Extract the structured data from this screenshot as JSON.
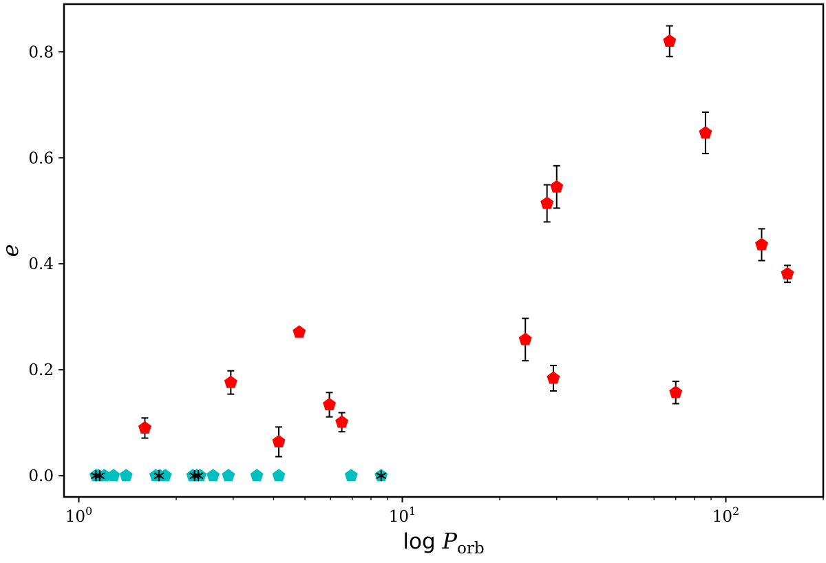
{
  "chart_data": {
    "type": "scatter",
    "title": "",
    "xlabel": {
      "prefix": "log ",
      "symbol": "P",
      "subscript": "orb"
    },
    "ylabel": "e",
    "x_scale": "log",
    "xlim": [
      0.9,
      200
    ],
    "ylim": [
      -0.04,
      0.89
    ],
    "x_ticks": [
      {
        "value": 1,
        "base": "10",
        "exp": "0"
      },
      {
        "value": 10,
        "base": "10",
        "exp": "1"
      },
      {
        "value": 100,
        "base": "10",
        "exp": "2"
      }
    ],
    "y_ticks": [
      {
        "value": 0.0,
        "label": "0.0"
      },
      {
        "value": 0.2,
        "label": "0.2"
      },
      {
        "value": 0.4,
        "label": "0.4"
      },
      {
        "value": 0.6,
        "label": "0.6"
      },
      {
        "value": 0.8,
        "label": "0.8"
      }
    ],
    "grid": false,
    "legend": "none",
    "series": [
      {
        "marker": "pentagon",
        "color": "#ff0000",
        "points": [
          {
            "x": 1.6,
            "y": 0.09,
            "err": 0.019
          },
          {
            "x": 2.95,
            "y": 0.176,
            "err": 0.022
          },
          {
            "x": 4.15,
            "y": 0.064,
            "err": 0.028
          },
          {
            "x": 4.8,
            "y": 0.271,
            "err": 0
          },
          {
            "x": 5.95,
            "y": 0.134,
            "err": 0.023
          },
          {
            "x": 6.5,
            "y": 0.101,
            "err": 0.018
          },
          {
            "x": 24.0,
            "y": 0.257,
            "err": 0.04
          },
          {
            "x": 28.0,
            "y": 0.514,
            "err": 0.035
          },
          {
            "x": 29.3,
            "y": 0.184,
            "err": 0.024
          },
          {
            "x": 30.0,
            "y": 0.545,
            "err": 0.04
          },
          {
            "x": 67.0,
            "y": 0.82,
            "err": 0.029
          },
          {
            "x": 70.0,
            "y": 0.157,
            "err": 0.021
          },
          {
            "x": 86.5,
            "y": 0.647,
            "err": 0.039
          },
          {
            "x": 129.0,
            "y": 0.436,
            "err": 0.03
          },
          {
            "x": 155.0,
            "y": 0.381,
            "err": 0.016
          }
        ]
      },
      {
        "marker": "pentagon",
        "color": "#00bfbf",
        "points": [
          {
            "x": 1.13,
            "y": 0
          },
          {
            "x": 1.15,
            "y": 0
          },
          {
            "x": 1.2,
            "y": 0
          },
          {
            "x": 1.28,
            "y": 0
          },
          {
            "x": 1.4,
            "y": 0
          },
          {
            "x": 1.73,
            "y": 0
          },
          {
            "x": 1.78,
            "y": 0
          },
          {
            "x": 1.85,
            "y": 0
          },
          {
            "x": 2.25,
            "y": 0
          },
          {
            "x": 2.32,
            "y": 0
          },
          {
            "x": 2.37,
            "y": 0
          },
          {
            "x": 2.6,
            "y": 0
          },
          {
            "x": 2.9,
            "y": 0
          },
          {
            "x": 3.55,
            "y": 0
          },
          {
            "x": 4.15,
            "y": 0
          },
          {
            "x": 6.95,
            "y": 0
          },
          {
            "x": 8.6,
            "y": 0
          }
        ]
      },
      {
        "marker": "asterisk",
        "color": "#000000",
        "points": [
          {
            "x": 1.13,
            "y": 0
          },
          {
            "x": 1.16,
            "y": 0
          },
          {
            "x": 1.77,
            "y": 0
          },
          {
            "x": 2.28,
            "y": 0
          },
          {
            "x": 2.34,
            "y": 0
          },
          {
            "x": 8.6,
            "y": 0
          }
        ]
      }
    ]
  }
}
